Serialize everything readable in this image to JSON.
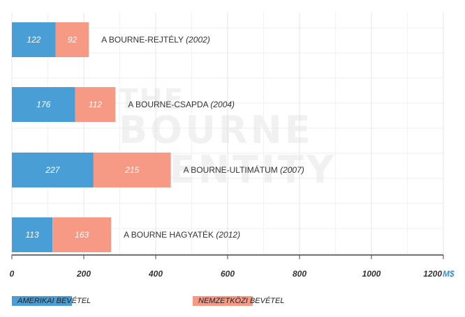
{
  "chart_data": {
    "type": "bar",
    "orientation": "horizontal",
    "stacked": true,
    "categories": [
      {
        "name": "A BOURNE-REJTÉLY",
        "year": "(2002)"
      },
      {
        "name": "A BOURNE-CSAPDA",
        "year": "(2004)"
      },
      {
        "name": "A BOURNE-ULTIMÁTUM",
        "year": "(2007)"
      },
      {
        "name": "A BOURNE HAGYATÉK",
        "year": "(2012)"
      }
    ],
    "series": [
      {
        "name": "AMERIKAI BEVÉTEL",
        "color": "#4a9ed6",
        "values": [
          122,
          176,
          227,
          113
        ]
      },
      {
        "name": "NEMZETKÖZI BEVÉTEL",
        "color": "#f79a85",
        "values": [
          92,
          112,
          215,
          163
        ]
      }
    ],
    "x_ticks": [
      "0",
      "200",
      "400",
      "600",
      "800",
      "1000",
      "1200"
    ],
    "xlim": [
      0,
      1200
    ],
    "x_unit": "M$",
    "watermark": [
      "THE",
      "BOURNE",
      "IDENTITY"
    ],
    "legend_position": "bottom-left",
    "grid": true
  }
}
